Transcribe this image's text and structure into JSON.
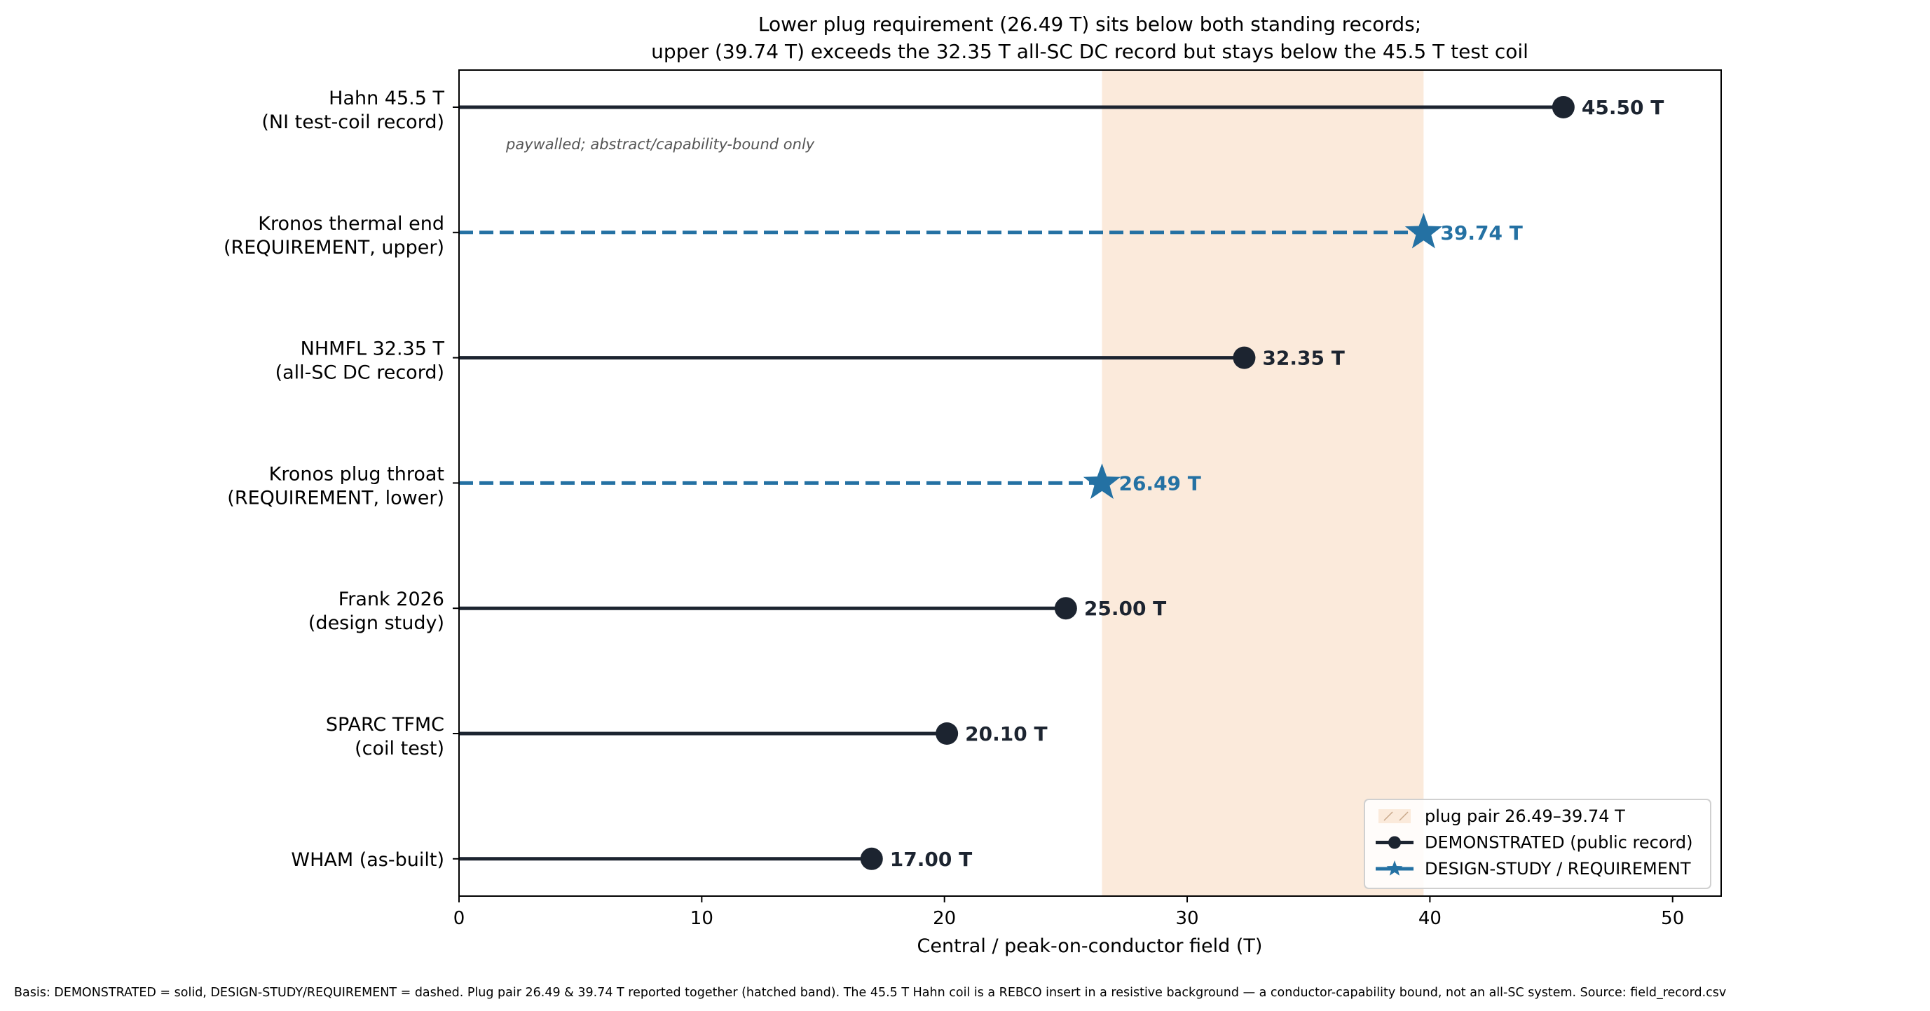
{
  "chart_data": {
    "type": "lollipop",
    "title": [
      "Lower plug requirement (26.49 T) sits below both standing records;",
      "upper (39.74 T) exceeds the 32.35 T all-SC DC record but stays below the 45.5 T test coil"
    ],
    "xlabel": "Central / peak-on-conductor field (T)",
    "ylabel": "",
    "xlim": [
      0,
      52
    ],
    "xticks": [
      0,
      10,
      20,
      30,
      40,
      50
    ],
    "grid": false,
    "legend_position": "lower right",
    "band": {
      "from": 26.49,
      "to": 39.74,
      "label": "plug pair 26.49–39.74 T",
      "color": "#fbeadb"
    },
    "categories": [
      {
        "line1": "Hahn 45.5 T",
        "line2": "(NI test-coil record)",
        "value": 45.5,
        "value_label": "45.50 T",
        "basis": "demonstrated",
        "note": "paywalled; abstract/capability-bound only"
      },
      {
        "line1": "Kronos thermal end",
        "line2": "(REQUIREMENT, upper)",
        "value": 39.74,
        "value_label": "39.74 T",
        "basis": "requirement"
      },
      {
        "line1": "NHMFL 32.35 T",
        "line2": "(all-SC DC record)",
        "value": 32.35,
        "value_label": "32.35 T",
        "basis": "demonstrated"
      },
      {
        "line1": "Kronos plug throat",
        "line2": "(REQUIREMENT, lower)",
        "value": 26.49,
        "value_label": "26.49 T",
        "basis": "requirement"
      },
      {
        "line1": "Frank 2026",
        "line2": "(design study)",
        "value": 25.0,
        "value_label": "25.00 T",
        "basis": "demonstrated"
      },
      {
        "line1": "SPARC TFMC",
        "line2": "(coil test)",
        "value": 20.1,
        "value_label": "20.10 T",
        "basis": "demonstrated"
      },
      {
        "line1": "WHAM (as-built)",
        "line2": "",
        "value": 17.0,
        "value_label": "17.00 T",
        "basis": "demonstrated"
      }
    ],
    "legend": [
      {
        "label": "plug pair 26.49–39.74 T",
        "kind": "band"
      },
      {
        "label": "DEMONSTRATED (public record)",
        "kind": "demonstrated"
      },
      {
        "label": "DESIGN-STUDY / REQUIREMENT",
        "kind": "requirement"
      }
    ],
    "colors": {
      "demonstrated": "#1c2430",
      "requirement": "#2471a3",
      "band": "#fbeadb"
    },
    "footnote": "Basis: DEMONSTRATED = solid, DESIGN-STUDY/REQUIREMENT = dashed. Plug pair 26.49 & 39.74 T reported together (hatched band). The 45.5 T Hahn coil is a REBCO insert in a resistive background — a conductor-capability bound, not an all-SC system. Source: field_record.csv"
  }
}
